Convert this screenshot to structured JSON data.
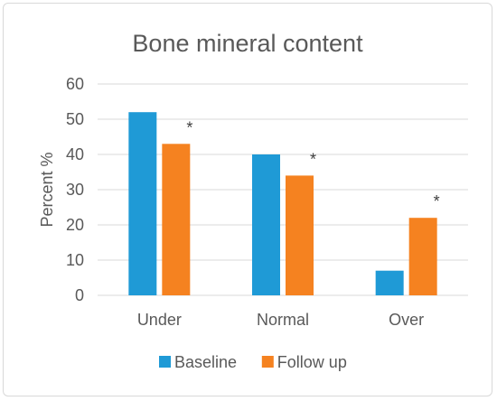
{
  "chart_data": {
    "type": "bar",
    "title": "Bone mineral content",
    "xlabel": "",
    "ylabel": "Percent %",
    "ylim": [
      0,
      60
    ],
    "yticks": [
      0,
      10,
      20,
      30,
      40,
      50,
      60
    ],
    "grid": true,
    "legend_position": "bottom",
    "categories": [
      "Under",
      "Normal",
      "Over"
    ],
    "series": [
      {
        "name": "Baseline",
        "color": "#1f9ad6",
        "values": [
          52,
          40,
          7
        ]
      },
      {
        "name": "Follow up",
        "color": "#f58220",
        "values": [
          43,
          34,
          22
        ]
      }
    ],
    "annotations": [
      {
        "category": "Under",
        "series": "Follow up",
        "text": "*"
      },
      {
        "category": "Normal",
        "series": "Follow up",
        "text": "*"
      },
      {
        "category": "Over",
        "series": "Follow up",
        "text": "*"
      }
    ]
  }
}
